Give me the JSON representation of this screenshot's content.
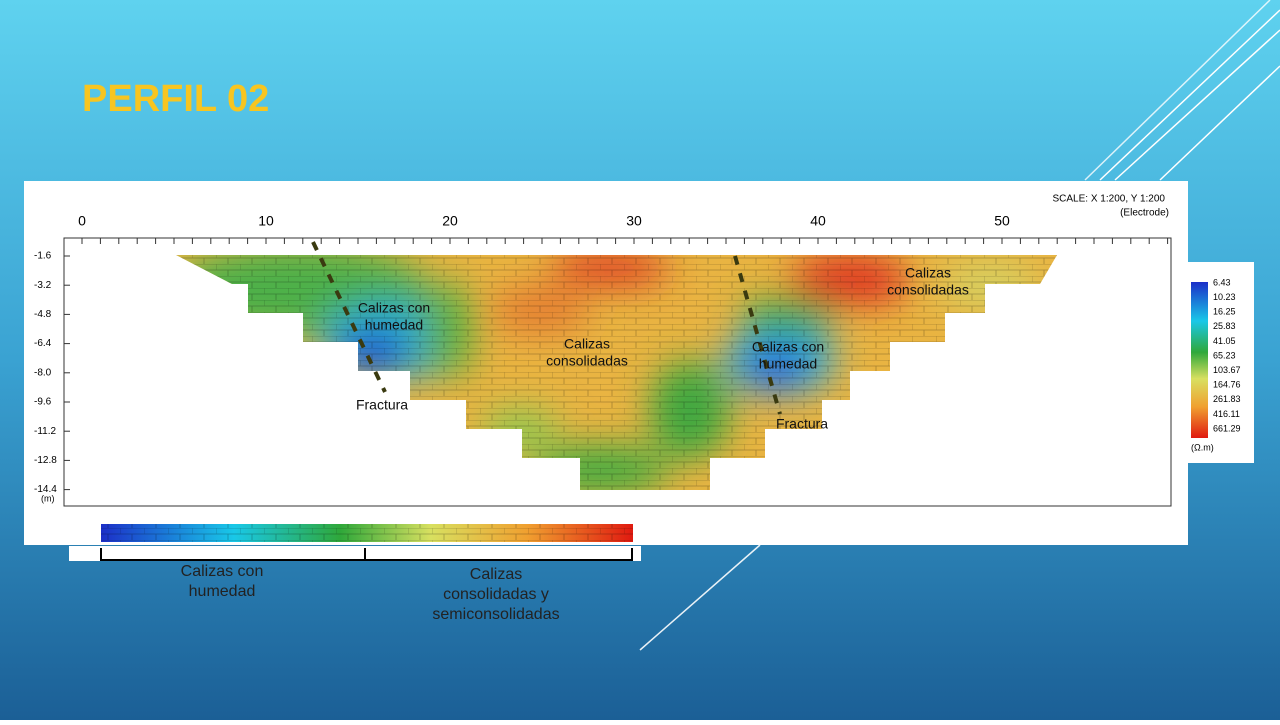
{
  "title": "PERFIL 02",
  "profile": {
    "scale": "SCALE: X 1:200, Y 1:200",
    "scale_unit": "(Electrode)",
    "x_ticks": [
      "0",
      "10",
      "20",
      "30",
      "40",
      "50"
    ],
    "depth_ticks": [
      "-1.6",
      "-3.2",
      "-4.8",
      "-6.4",
      "-8.0",
      "-9.6",
      "-11.2",
      "-12.8",
      "-14.4"
    ],
    "depth_unit": "(m)",
    "annotations": [
      {
        "lines": [
          "Calizas con",
          "humedad"
        ]
      },
      {
        "lines": [
          "Calizas",
          "consolidadas"
        ]
      },
      {
        "lines": [
          "Calizas con",
          "humedad"
        ]
      },
      {
        "lines": [
          "Calizas",
          "consolidadas"
        ]
      },
      {
        "lines": [
          "Fractura"
        ]
      },
      {
        "lines": [
          "Fractura"
        ]
      }
    ]
  },
  "legend": {
    "values": [
      "6.43",
      "10.23",
      "16.25",
      "25.83",
      "41.05",
      "65.23",
      "103.67",
      "164.76",
      "261.83",
      "416.11",
      "661.29"
    ],
    "unit": "(Ω.m)"
  },
  "color_scale": {
    "groups": [
      {
        "lines": [
          "Calizas con",
          "humedad"
        ]
      },
      {
        "lines": [
          "Calizas",
          "consolidadas y",
          "semiconsolidadas"
        ]
      }
    ]
  }
}
